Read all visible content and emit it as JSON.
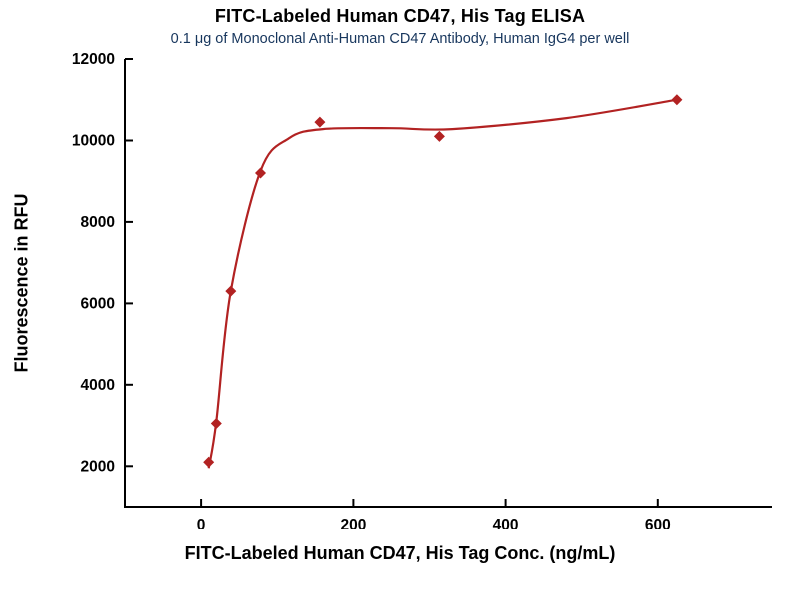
{
  "chart_data": {
    "type": "scatter",
    "title": "FITC-Labeled Human CD47, His Tag ELISA",
    "subtitle": "0.1 μg of Monoclonal Anti-Human CD47 Antibody, Human IgG4 per well",
    "xlabel": "FITC-Labeled Human CD47, His Tag Conc. (ng/mL)",
    "ylabel": "Fluorescence in RFU",
    "xlim": [
      -100,
      750
    ],
    "ylim": [
      1000,
      12000
    ],
    "x_ticks": [
      0,
      200,
      400,
      600
    ],
    "y_ticks": [
      2000,
      4000,
      6000,
      8000,
      10000,
      12000
    ],
    "grid": false,
    "legend": "none",
    "series": [
      {
        "name": "FITC-Labeled Human CD47, His Tag",
        "marker": "diamond",
        "color": "#b22222",
        "points": [
          [
            10,
            2100
          ],
          [
            20,
            3050
          ],
          [
            39,
            6300
          ],
          [
            78,
            9200
          ],
          [
            156,
            10450
          ],
          [
            313,
            10100
          ],
          [
            625,
            11000
          ]
        ]
      }
    ],
    "fit_curve": {
      "color": "#b22222",
      "points": [
        [
          10,
          1950
        ],
        [
          20,
          3100
        ],
        [
          39,
          6300
        ],
        [
          78,
          9250
        ],
        [
          115,
          10050
        ],
        [
          160,
          10280
        ],
        [
          250,
          10300
        ],
        [
          330,
          10280
        ],
        [
          480,
          10550
        ],
        [
          625,
          11000
        ]
      ]
    }
  },
  "colors": {
    "title": "#000000",
    "subtitle": "#17365d",
    "axis": "#000000",
    "tick_label": "#000000",
    "series": "#b22222"
  }
}
